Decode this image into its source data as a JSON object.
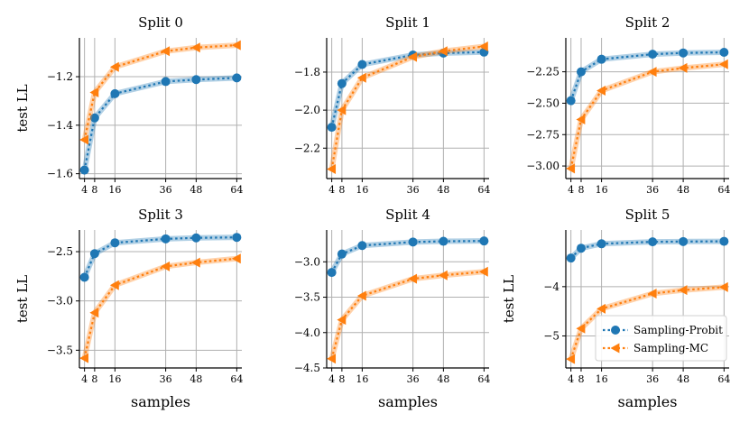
{
  "colors": {
    "probit": "#1f77b4",
    "mc": "#ff7f0e",
    "grid": "#b0b0b0",
    "axis": "#000000"
  },
  "legend": {
    "placement": "lower-right",
    "subplot_index": 5
  },
  "chart_data": [
    {
      "type": "line",
      "title": "Split 0",
      "ylabel": "test LL",
      "xlabel": "",
      "grid": true,
      "x": [
        4,
        8,
        16,
        36,
        48,
        64
      ],
      "xticks": [
        "4",
        "8",
        "16",
        "36",
        "48",
        "64"
      ],
      "xlim": [
        2,
        66
      ],
      "ylim": [
        -1.62,
        -1.04
      ],
      "yticks": [
        -1.6,
        -1.4,
        -1.2
      ],
      "ytick_labels": [
        "−1.6",
        "−1.4",
        "−1.2"
      ],
      "series": [
        {
          "name": "Sampling-Probit",
          "marker": "circle",
          "values": [
            -1.585,
            -1.37,
            -1.27,
            -1.22,
            -1.212,
            -1.205
          ]
        },
        {
          "name": "Sampling-MC",
          "marker": "triangle-left",
          "values": [
            -1.46,
            -1.265,
            -1.16,
            -1.095,
            -1.08,
            -1.07
          ]
        }
      ]
    },
    {
      "type": "line",
      "title": "Split 1",
      "ylabel": "",
      "xlabel": "",
      "grid": true,
      "x": [
        4,
        8,
        16,
        36,
        48,
        64
      ],
      "xticks": [
        "4",
        "8",
        "16",
        "36",
        "48",
        "64"
      ],
      "xlim": [
        2,
        66
      ],
      "ylim": [
        -2.36,
        -1.62
      ],
      "yticks": [
        -2.2,
        -2.0,
        -1.8
      ],
      "ytick_labels": [
        "−2.2",
        "−2.0",
        "−1.8"
      ],
      "series": [
        {
          "name": "Sampling-Probit",
          "marker": "circle",
          "values": [
            -2.09,
            -1.86,
            -1.76,
            -1.71,
            -1.7,
            -1.695
          ]
        },
        {
          "name": "Sampling-MC",
          "marker": "triangle-left",
          "values": [
            -2.31,
            -2.0,
            -1.83,
            -1.72,
            -1.69,
            -1.665
          ]
        }
      ]
    },
    {
      "type": "line",
      "title": "Split 2",
      "ylabel": "",
      "xlabel": "",
      "grid": true,
      "x": [
        4,
        8,
        16,
        36,
        48,
        64
      ],
      "xticks": [
        "4",
        "8",
        "16",
        "36",
        "48",
        "64"
      ],
      "xlim": [
        2,
        66
      ],
      "ylim": [
        -3.1,
        -1.98
      ],
      "yticks": [
        -3.0,
        -2.75,
        -2.5,
        -2.25
      ],
      "ytick_labels": [
        "−3.00",
        "−2.75",
        "−2.50",
        "−2.25"
      ],
      "series": [
        {
          "name": "Sampling-Probit",
          "marker": "circle",
          "values": [
            -2.48,
            -2.25,
            -2.15,
            -2.11,
            -2.1,
            -2.095
          ]
        },
        {
          "name": "Sampling-MC",
          "marker": "triangle-left",
          "values": [
            -3.02,
            -2.63,
            -2.4,
            -2.25,
            -2.22,
            -2.19
          ]
        }
      ]
    },
    {
      "type": "line",
      "title": "Split 3",
      "ylabel": "test LL",
      "xlabel": "samples",
      "grid": true,
      "x": [
        4,
        8,
        16,
        36,
        48,
        64
      ],
      "xticks": [
        "4",
        "8",
        "16",
        "36",
        "48",
        "64"
      ],
      "xlim": [
        2,
        66
      ],
      "ylim": [
        -3.68,
        -2.28
      ],
      "yticks": [
        -3.5,
        -3.0,
        -2.5
      ],
      "ytick_labels": [
        "−3.5",
        "−3.0",
        "−2.5"
      ],
      "series": [
        {
          "name": "Sampling-Probit",
          "marker": "circle",
          "values": [
            -2.76,
            -2.52,
            -2.41,
            -2.37,
            -2.36,
            -2.355
          ]
        },
        {
          "name": "Sampling-MC",
          "marker": "triangle-left",
          "values": [
            -3.58,
            -3.12,
            -2.84,
            -2.65,
            -2.61,
            -2.57
          ]
        }
      ]
    },
    {
      "type": "line",
      "title": "Split 4",
      "ylabel": "",
      "xlabel": "samples",
      "grid": true,
      "x": [
        4,
        8,
        16,
        36,
        48,
        64
      ],
      "xticks": [
        "4",
        "8",
        "16",
        "36",
        "48",
        "64"
      ],
      "xlim": [
        2,
        66
      ],
      "ylim": [
        -4.5,
        -2.55
      ],
      "yticks": [
        -4.5,
        -4.0,
        -3.5,
        -3.0
      ],
      "ytick_labels": [
        "−4.5",
        "−4.0",
        "−3.5",
        "−3.0"
      ],
      "series": [
        {
          "name": "Sampling-Probit",
          "marker": "circle",
          "values": [
            -3.15,
            -2.89,
            -2.77,
            -2.72,
            -2.71,
            -2.705
          ]
        },
        {
          "name": "Sampling-MC",
          "marker": "triangle-left",
          "values": [
            -4.37,
            -3.82,
            -3.48,
            -3.24,
            -3.19,
            -3.14
          ]
        }
      ]
    },
    {
      "type": "line",
      "title": "Split 5",
      "ylabel": "test LL",
      "xlabel": "samples",
      "grid": true,
      "x": [
        4,
        8,
        16,
        36,
        48,
        64
      ],
      "xticks": [
        "4",
        "8",
        "16",
        "36",
        "48",
        "64"
      ],
      "xlim": [
        2,
        66
      ],
      "ylim": [
        -5.65,
        -2.85
      ],
      "yticks": [
        -5,
        -4
      ],
      "ytick_labels": [
        "−5",
        "−4"
      ],
      "series": [
        {
          "name": "Sampling-Probit",
          "marker": "circle",
          "values": [
            -3.42,
            -3.22,
            -3.13,
            -3.09,
            -3.085,
            -3.08
          ]
        },
        {
          "name": "Sampling-MC",
          "marker": "triangle-left",
          "values": [
            -5.47,
            -4.85,
            -4.45,
            -4.14,
            -4.07,
            -4.01
          ]
        }
      ]
    }
  ]
}
